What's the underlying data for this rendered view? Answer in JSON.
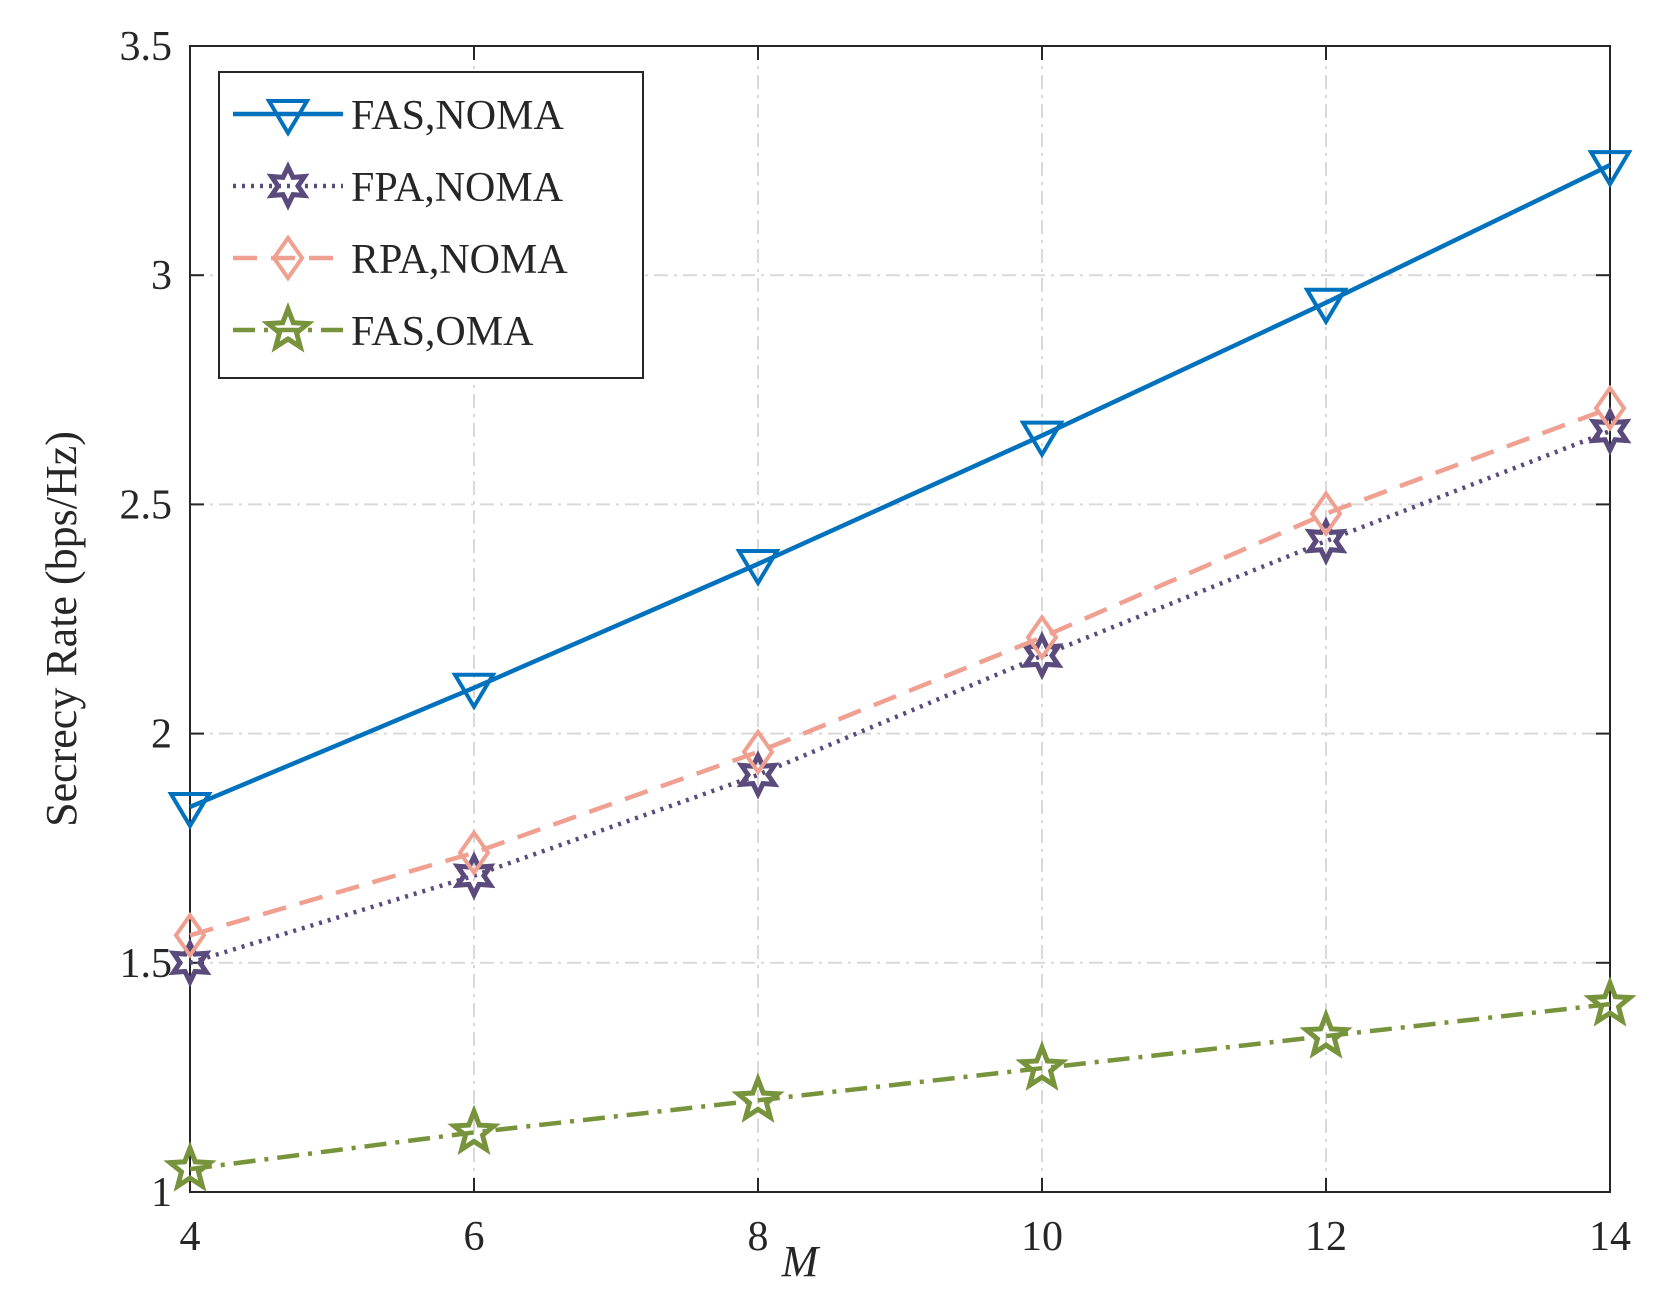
{
  "chart_data": {
    "type": "line",
    "title": "",
    "xlabel": "M",
    "ylabel": "Secrecy Rate (bps/Hz)",
    "x": [
      4,
      6,
      8,
      10,
      12,
      14
    ],
    "xlim": [
      4,
      14
    ],
    "ylim": [
      1,
      3.5
    ],
    "xticks": [
      "4",
      "6",
      "8",
      "10",
      "12",
      "14"
    ],
    "yticks": [
      "1",
      "1.5",
      "2",
      "2.5",
      "3",
      "3.5"
    ],
    "grid": true,
    "legend_position": "top-left",
    "series": [
      {
        "name": "FAS,NOMA",
        "values": [
          1.84,
          2.1,
          2.37,
          2.65,
          2.94,
          3.24
        ],
        "color": "#0072BD",
        "dash": "solid",
        "marker": "triangle-down"
      },
      {
        "name": "FPA,NOMA",
        "values": [
          1.5,
          1.69,
          1.91,
          2.17,
          2.42,
          2.66
        ],
        "color": "#5B4A7C",
        "dash": "dotted",
        "marker": "hexagram"
      },
      {
        "name": "RPA,NOMA",
        "values": [
          1.56,
          1.74,
          1.96,
          2.21,
          2.48,
          2.71
        ],
        "color": "#F0A090",
        "dash": "dashed",
        "marker": "diamond"
      },
      {
        "name": "FAS,OMA",
        "values": [
          1.05,
          1.13,
          1.2,
          1.27,
          1.34,
          1.41
        ],
        "color": "#77933C",
        "dash": "dashdot",
        "marker": "pentagram"
      }
    ]
  }
}
